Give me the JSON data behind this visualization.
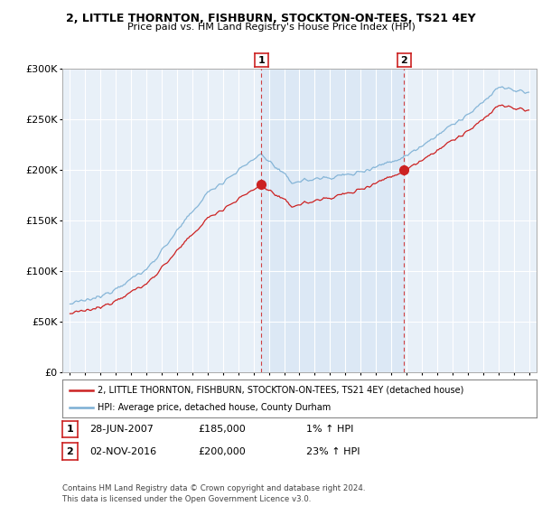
{
  "title_line1": "2, LITTLE THORNTON, FISHBURN, STOCKTON-ON-TEES, TS21 4EY",
  "title_line2": "Price paid vs. HM Land Registry's House Price Index (HPI)",
  "sale1_x": 2007.5,
  "sale1_price": 185000,
  "sale1_label": "1",
  "sale2_x": 2016.83,
  "sale2_price": 200000,
  "sale2_label": "2",
  "legend_line1": "2, LITTLE THORNTON, FISHBURN, STOCKTON-ON-TEES, TS21 4EY (detached house)",
  "legend_line2": "HPI: Average price, detached house, County Durham",
  "table_row1_num": "1",
  "table_row1_date": "28-JUN-2007",
  "table_row1_price": "£185,000",
  "table_row1_pct": "1% ↑ HPI",
  "table_row2_num": "2",
  "table_row2_date": "02-NOV-2016",
  "table_row2_price": "£200,000",
  "table_row2_pct": "23% ↑ HPI",
  "footer": "Contains HM Land Registry data © Crown copyright and database right 2024.\nThis data is licensed under the Open Government Licence v3.0.",
  "hpi_color": "#7bafd4",
  "price_color": "#cc2222",
  "vline_color": "#cc2222",
  "shade_color": "#dce8f5",
  "bg_color": "#e8f0f8",
  "grid_color": "#ffffff",
  "ylim": [
    0,
    300000
  ],
  "ytick_vals": [
    0,
    50000,
    100000,
    150000,
    200000,
    250000,
    300000
  ],
  "ytick_labels": [
    "£0",
    "£50K",
    "£100K",
    "£150K",
    "£200K",
    "£250K",
    "£300K"
  ],
  "xmin": 1994.5,
  "xmax": 2025.5
}
